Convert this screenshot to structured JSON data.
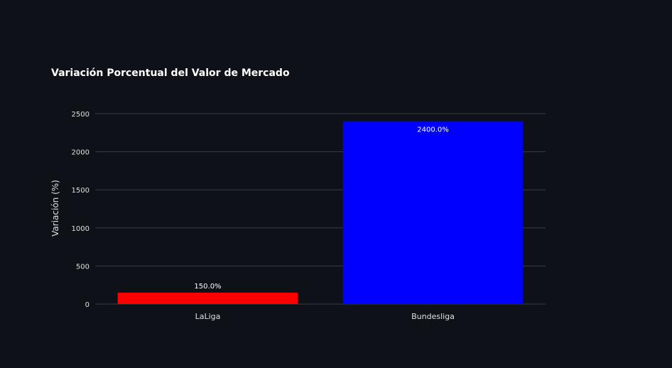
{
  "chart_data": {
    "type": "bar",
    "title": "Variación Porcentual del Valor de Mercado",
    "xlabel": "",
    "ylabel": "Variación (%)",
    "categories": [
      "LaLiga",
      "Bundesliga"
    ],
    "values": [
      150,
      2400
    ],
    "data_labels": [
      "150.0%",
      "2400.0%"
    ],
    "bar_colors": [
      "#ff0000",
      "#0000ff"
    ],
    "ylim": [
      0,
      2600
    ],
    "yticks": [
      0,
      500,
      1000,
      1500,
      2000,
      2500
    ],
    "grid": true,
    "legend": "none"
  },
  "colors": {
    "background": "#0e1117",
    "grid": "#3a3d44",
    "text": "#e0e0e0"
  }
}
